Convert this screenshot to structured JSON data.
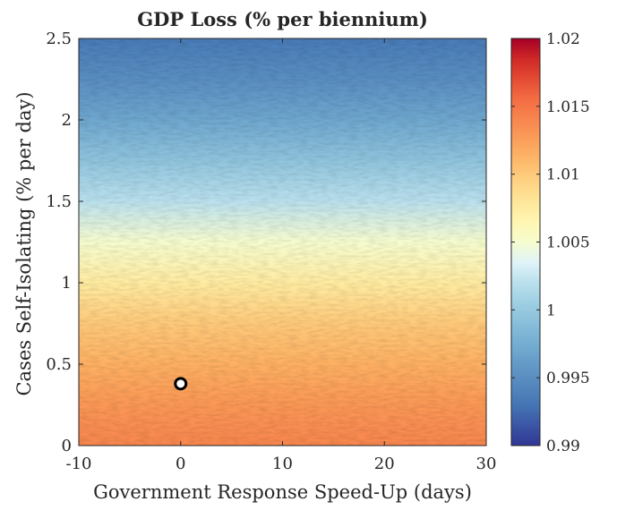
{
  "chart_data": {
    "type": "heatmap",
    "title": "GDP Loss (% per biennium)",
    "xlabel": "Government Response Speed-Up (days)",
    "ylabel": "Cases Self-Isolating (% per day)",
    "xlim": [
      -10,
      30
    ],
    "ylim": [
      0,
      2.5
    ],
    "x_ticks": [
      -10,
      0,
      10,
      20,
      30
    ],
    "x_tick_labels": [
      "-10",
      "0",
      "10",
      "20",
      "30"
    ],
    "y_ticks": [
      0,
      0.5,
      1,
      1.5,
      2,
      2.5
    ],
    "y_tick_labels": [
      "0",
      "0.5",
      "1",
      "1.5",
      "2",
      "2.5"
    ],
    "colorbar": {
      "range": [
        0.99,
        1.02
      ],
      "ticks": [
        0.99,
        0.995,
        1,
        1.005,
        1.01,
        1.015,
        1.02
      ],
      "tick_labels": [
        "0.99",
        "0.995",
        "1",
        "1.005",
        "1.01",
        "1.015",
        "1.02"
      ],
      "colormap": "red-yellow-blue (reversed)"
    },
    "surface_trend": {
      "description_of_values": "GDP loss decreases as self-isolation rate increases; nearly constant along x",
      "y_samples": [
        0,
        0.25,
        0.5,
        0.75,
        1.0,
        1.25,
        1.5,
        1.75,
        2.0,
        2.25,
        2.5
      ],
      "gdp_loss_samples": [
        1.014,
        1.013,
        1.0115,
        1.01,
        1.0075,
        1.005,
        1.002,
        0.9995,
        0.997,
        0.995,
        0.9935
      ]
    },
    "marker": {
      "x": 0,
      "y": 0.38,
      "style": "white circle, black edge"
    }
  }
}
